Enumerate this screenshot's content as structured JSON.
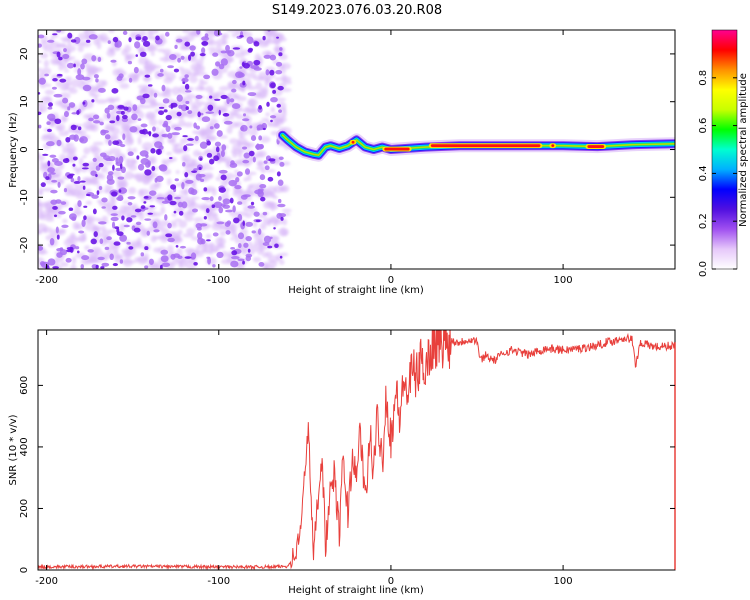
{
  "title": "S149.2023.076.03.20.R08",
  "chart_data": [
    {
      "type": "heatmap",
      "name": "spectrogram",
      "xlabel": "Height of straight line (km)",
      "ylabel": "Frequency (Hz)",
      "xlim": [
        -205,
        165
      ],
      "ylim": [
        -25,
        25
      ],
      "xticks": [
        -200,
        -100,
        0,
        100
      ],
      "yticks": [
        -20,
        -10,
        0,
        10,
        20
      ],
      "noise_region_x": [
        -205,
        -63
      ],
      "signal_ridge": [
        [
          -63,
          3.0
        ],
        [
          -60,
          2.0
        ],
        [
          -55,
          0.5
        ],
        [
          -50,
          -0.5
        ],
        [
          -45,
          -1.0
        ],
        [
          -42,
          -1.2
        ],
        [
          -38,
          0.5
        ],
        [
          -35,
          0.8
        ],
        [
          -30,
          0.2
        ],
        [
          -25,
          0.8
        ],
        [
          -20,
          2.0
        ],
        [
          -15,
          0.5
        ],
        [
          -10,
          0.0
        ],
        [
          -5,
          0.5
        ],
        [
          0,
          0.0
        ],
        [
          20,
          0.5
        ],
        [
          40,
          0.8
        ],
        [
          60,
          0.8
        ],
        [
          80,
          0.8
        ],
        [
          100,
          0.8
        ],
        [
          120,
          0.6
        ],
        [
          140,
          1.0
        ],
        [
          165,
          1.2
        ]
      ],
      "colorbar": {
        "label": "Normalized spectral amplitude",
        "ticks": [
          "0.0",
          "0.2",
          "0.4",
          "0.6",
          "0.8"
        ],
        "range": [
          0,
          1
        ],
        "colors": [
          "#ffffff",
          "#e6c8fa",
          "#a050f0",
          "#5010e0",
          "#0000ff",
          "#00b0ff",
          "#00ffd0",
          "#00ff00",
          "#c8ff00",
          "#ffff00",
          "#ff9000",
          "#ff0000",
          "#ff0090"
        ]
      }
    },
    {
      "type": "line",
      "name": "snr",
      "xlabel": "Height of straight line (km)",
      "ylabel": "SNR (10 * v/v)",
      "xlim": [
        -205,
        165
      ],
      "ylim": [
        0,
        780
      ],
      "xticks": [
        -200,
        -100,
        0,
        100
      ],
      "yticks": [
        0,
        200,
        400,
        600
      ],
      "color": "#e8403c",
      "series": [
        {
          "name": "SNR",
          "x": [
            -205,
            -150,
            -100,
            -70,
            -60,
            -55,
            -52,
            -50,
            -48,
            -45,
            -43,
            -40,
            -38,
            -35,
            -33,
            -30,
            -28,
            -25,
            -22,
            -20,
            -18,
            -15,
            -12,
            -10,
            -8,
            -5,
            -3,
            0,
            3,
            5,
            8,
            10,
            12,
            15,
            18,
            20,
            25,
            30,
            35,
            40,
            45,
            50,
            52,
            55,
            60,
            65,
            70,
            80,
            90,
            100,
            110,
            120,
            125,
            130,
            135,
            140,
            142,
            145,
            150,
            155,
            165
          ],
          "y": [
            10,
            12,
            10,
            10,
            12,
            60,
            150,
            320,
            470,
            40,
            200,
            380,
            80,
            260,
            310,
            120,
            350,
            190,
            390,
            260,
            480,
            210,
            440,
            310,
            500,
            350,
            560,
            430,
            580,
            500,
            620,
            560,
            650,
            630,
            690,
            660,
            740,
            735,
            745,
            740,
            750,
            745,
            680,
            700,
            680,
            705,
            715,
            700,
            720,
            715,
            720,
            730,
            740,
            745,
            755,
            750,
            665,
            740,
            730,
            725,
            730
          ]
        }
      ]
    }
  ]
}
